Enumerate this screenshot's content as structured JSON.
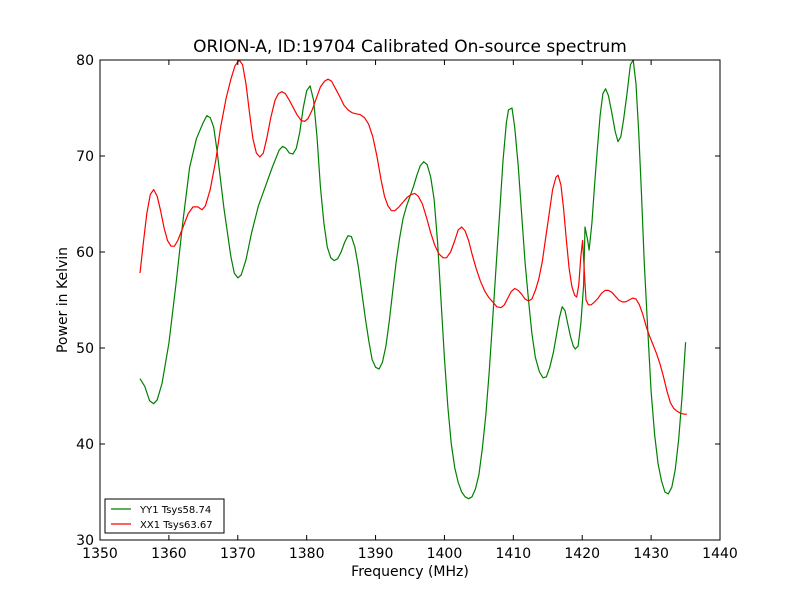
{
  "chart_data": {
    "type": "line",
    "title": "ORION-A, ID:19704 Calibrated On-source spectrum",
    "xlabel": "Frequency (MHz)",
    "ylabel": "Power in Kelvin",
    "xlim": [
      1350,
      1440
    ],
    "ylim": [
      30,
      80
    ],
    "xticks": [
      1350,
      1360,
      1370,
      1380,
      1390,
      1400,
      1410,
      1420,
      1430,
      1440
    ],
    "yticks": [
      30,
      40,
      50,
      60,
      70,
      80
    ],
    "grid": false,
    "legend_position": "lower-left",
    "series": [
      {
        "name": "YY1 Tsys58.74",
        "color": "#008000",
        "points": [
          [
            1355.8,
            46.8
          ],
          [
            1356.5,
            46.0
          ],
          [
            1357.2,
            44.5
          ],
          [
            1357.8,
            44.2
          ],
          [
            1358.3,
            44.6
          ],
          [
            1359.0,
            46.3
          ],
          [
            1360.0,
            50.5
          ],
          [
            1361.0,
            56.5
          ],
          [
            1362.0,
            63.0
          ],
          [
            1363.0,
            68.8
          ],
          [
            1364.0,
            71.8
          ],
          [
            1365.0,
            73.5
          ],
          [
            1365.5,
            74.2
          ],
          [
            1366.0,
            74.0
          ],
          [
            1366.5,
            73.0
          ],
          [
            1367.0,
            70.5
          ],
          [
            1368.0,
            64.5
          ],
          [
            1369.0,
            59.5
          ],
          [
            1369.5,
            57.8
          ],
          [
            1370.0,
            57.3
          ],
          [
            1370.5,
            57.6
          ],
          [
            1371.2,
            59.2
          ],
          [
            1372.0,
            62.0
          ],
          [
            1373.0,
            64.8
          ],
          [
            1374.0,
            66.8
          ],
          [
            1375.0,
            68.8
          ],
          [
            1376.0,
            70.6
          ],
          [
            1376.5,
            71.0
          ],
          [
            1377.0,
            70.8
          ],
          [
            1377.5,
            70.3
          ],
          [
            1378.0,
            70.2
          ],
          [
            1378.5,
            70.8
          ],
          [
            1379.0,
            72.5
          ],
          [
            1379.5,
            75.0
          ],
          [
            1380.0,
            76.8
          ],
          [
            1380.5,
            77.3
          ],
          [
            1381.0,
            75.8
          ],
          [
            1381.5,
            72.0
          ],
          [
            1382.0,
            66.8
          ],
          [
            1382.5,
            63.0
          ],
          [
            1383.0,
            60.5
          ],
          [
            1383.5,
            59.4
          ],
          [
            1384.0,
            59.1
          ],
          [
            1384.5,
            59.3
          ],
          [
            1385.0,
            60.0
          ],
          [
            1385.5,
            61.0
          ],
          [
            1386.0,
            61.7
          ],
          [
            1386.5,
            61.6
          ],
          [
            1387.0,
            60.5
          ],
          [
            1387.5,
            58.5
          ],
          [
            1388.0,
            55.8
          ],
          [
            1388.5,
            53.2
          ],
          [
            1389.0,
            50.8
          ],
          [
            1389.5,
            48.8
          ],
          [
            1390.0,
            48.0
          ],
          [
            1390.5,
            47.8
          ],
          [
            1391.0,
            48.5
          ],
          [
            1391.5,
            50.2
          ],
          [
            1392.0,
            52.8
          ],
          [
            1392.5,
            56.0
          ],
          [
            1393.0,
            59.0
          ],
          [
            1393.5,
            61.5
          ],
          [
            1394.0,
            63.5
          ],
          [
            1394.5,
            64.8
          ],
          [
            1395.0,
            65.8
          ],
          [
            1395.5,
            66.8
          ],
          [
            1396.0,
            68.0
          ],
          [
            1396.5,
            69.0
          ],
          [
            1397.0,
            69.4
          ],
          [
            1397.5,
            69.1
          ],
          [
            1398.0,
            67.8
          ],
          [
            1398.5,
            65.5
          ],
          [
            1399.0,
            61.0
          ],
          [
            1399.5,
            55.0
          ],
          [
            1400.0,
            49.0
          ],
          [
            1400.5,
            43.8
          ],
          [
            1401.0,
            40.0
          ],
          [
            1401.5,
            37.5
          ],
          [
            1402.0,
            36.0
          ],
          [
            1402.5,
            35.0
          ],
          [
            1403.0,
            34.5
          ],
          [
            1403.5,
            34.3
          ],
          [
            1404.0,
            34.5
          ],
          [
            1404.5,
            35.3
          ],
          [
            1405.0,
            36.8
          ],
          [
            1405.5,
            39.5
          ],
          [
            1406.0,
            43.0
          ],
          [
            1406.5,
            47.5
          ],
          [
            1407.0,
            53.0
          ],
          [
            1407.5,
            58.5
          ],
          [
            1408.0,
            64.0
          ],
          [
            1408.5,
            69.5
          ],
          [
            1409.0,
            73.5
          ],
          [
            1409.3,
            74.8
          ],
          [
            1409.8,
            75.0
          ],
          [
            1410.2,
            73.0
          ],
          [
            1410.7,
            69.0
          ],
          [
            1411.2,
            64.0
          ],
          [
            1411.7,
            59.0
          ],
          [
            1412.2,
            55.0
          ],
          [
            1412.7,
            51.5
          ],
          [
            1413.2,
            49.0
          ],
          [
            1413.8,
            47.5
          ],
          [
            1414.3,
            46.9
          ],
          [
            1414.8,
            47.0
          ],
          [
            1415.3,
            48.0
          ],
          [
            1415.8,
            49.5
          ],
          [
            1416.3,
            51.5
          ],
          [
            1416.7,
            53.2
          ],
          [
            1417.1,
            54.3
          ],
          [
            1417.5,
            53.9
          ],
          [
            1417.9,
            52.5
          ],
          [
            1418.3,
            51.2
          ],
          [
            1418.7,
            50.2
          ],
          [
            1419.0,
            49.9
          ],
          [
            1419.4,
            50.2
          ],
          [
            1419.8,
            52.5
          ],
          [
            1420.2,
            56.5
          ],
          [
            1420.4,
            62.6
          ],
          [
            1420.8,
            61.2
          ],
          [
            1421.0,
            60.2
          ],
          [
            1421.4,
            63.0
          ],
          [
            1421.8,
            67.0
          ],
          [
            1422.2,
            70.8
          ],
          [
            1422.6,
            74.2
          ],
          [
            1423.0,
            76.5
          ],
          [
            1423.4,
            77.0
          ],
          [
            1423.8,
            76.3
          ],
          [
            1424.3,
            74.5
          ],
          [
            1424.8,
            72.5
          ],
          [
            1425.2,
            71.5
          ],
          [
            1425.6,
            72.0
          ],
          [
            1426.0,
            73.8
          ],
          [
            1426.5,
            76.5
          ],
          [
            1427.0,
            79.5
          ],
          [
            1427.4,
            80.0
          ],
          [
            1427.8,
            77.5
          ],
          [
            1428.2,
            72.5
          ],
          [
            1428.6,
            66.0
          ],
          [
            1429.0,
            59.0
          ],
          [
            1429.5,
            52.0
          ],
          [
            1430.0,
            45.5
          ],
          [
            1430.5,
            41.0
          ],
          [
            1431.0,
            38.0
          ],
          [
            1431.5,
            36.2
          ],
          [
            1432.0,
            35.0
          ],
          [
            1432.5,
            34.8
          ],
          [
            1433.0,
            35.5
          ],
          [
            1433.5,
            37.3
          ],
          [
            1434.0,
            40.5
          ],
          [
            1434.5,
            45.0
          ],
          [
            1435.0,
            50.6
          ]
        ]
      },
      {
        "name": "XX1 Tsys63.67",
        "color": "#ff0000",
        "points": [
          [
            1355.8,
            57.8
          ],
          [
            1356.3,
            61.0
          ],
          [
            1356.8,
            64.0
          ],
          [
            1357.3,
            66.0
          ],
          [
            1357.8,
            66.5
          ],
          [
            1358.3,
            65.8
          ],
          [
            1358.8,
            64.3
          ],
          [
            1359.3,
            62.5
          ],
          [
            1359.8,
            61.2
          ],
          [
            1360.3,
            60.6
          ],
          [
            1360.8,
            60.6
          ],
          [
            1361.3,
            61.2
          ],
          [
            1362.0,
            62.5
          ],
          [
            1362.8,
            64.0
          ],
          [
            1363.5,
            64.7
          ],
          [
            1364.2,
            64.7
          ],
          [
            1364.8,
            64.4
          ],
          [
            1365.3,
            64.8
          ],
          [
            1366.0,
            66.5
          ],
          [
            1366.8,
            69.5
          ],
          [
            1367.5,
            73.0
          ],
          [
            1368.3,
            76.0
          ],
          [
            1369.0,
            78.0
          ],
          [
            1369.6,
            79.4
          ],
          [
            1370.2,
            80.0
          ],
          [
            1370.7,
            79.5
          ],
          [
            1371.2,
            77.5
          ],
          [
            1371.7,
            74.5
          ],
          [
            1372.2,
            71.8
          ],
          [
            1372.7,
            70.3
          ],
          [
            1373.2,
            69.9
          ],
          [
            1373.7,
            70.3
          ],
          [
            1374.2,
            71.8
          ],
          [
            1374.8,
            74.0
          ],
          [
            1375.4,
            75.8
          ],
          [
            1375.9,
            76.5
          ],
          [
            1376.4,
            76.7
          ],
          [
            1376.9,
            76.5
          ],
          [
            1377.5,
            75.8
          ],
          [
            1378.0,
            75.1
          ],
          [
            1378.6,
            74.3
          ],
          [
            1379.2,
            73.7
          ],
          [
            1379.7,
            73.6
          ],
          [
            1380.2,
            73.9
          ],
          [
            1380.8,
            74.8
          ],
          [
            1381.4,
            76.0
          ],
          [
            1382.0,
            77.2
          ],
          [
            1382.6,
            77.8
          ],
          [
            1383.1,
            78.0
          ],
          [
            1383.6,
            77.8
          ],
          [
            1384.2,
            77.0
          ],
          [
            1384.8,
            76.2
          ],
          [
            1385.4,
            75.3
          ],
          [
            1386.0,
            74.8
          ],
          [
            1386.6,
            74.5
          ],
          [
            1387.2,
            74.4
          ],
          [
            1387.8,
            74.3
          ],
          [
            1388.4,
            74.0
          ],
          [
            1389.0,
            73.3
          ],
          [
            1389.6,
            72.0
          ],
          [
            1390.2,
            70.0
          ],
          [
            1390.8,
            67.5
          ],
          [
            1391.3,
            65.8
          ],
          [
            1391.8,
            64.8
          ],
          [
            1392.3,
            64.3
          ],
          [
            1392.8,
            64.3
          ],
          [
            1393.4,
            64.7
          ],
          [
            1394.0,
            65.2
          ],
          [
            1394.6,
            65.7
          ],
          [
            1395.2,
            66.0
          ],
          [
            1395.7,
            66.1
          ],
          [
            1396.2,
            65.8
          ],
          [
            1396.8,
            65.0
          ],
          [
            1397.4,
            63.6
          ],
          [
            1398.0,
            62.0
          ],
          [
            1398.6,
            60.7
          ],
          [
            1399.2,
            59.8
          ],
          [
            1399.8,
            59.4
          ],
          [
            1400.3,
            59.4
          ],
          [
            1400.9,
            60.0
          ],
          [
            1401.5,
            61.2
          ],
          [
            1402.0,
            62.3
          ],
          [
            1402.5,
            62.6
          ],
          [
            1403.0,
            62.2
          ],
          [
            1403.5,
            61.2
          ],
          [
            1404.0,
            59.8
          ],
          [
            1404.6,
            58.3
          ],
          [
            1405.2,
            57.0
          ],
          [
            1405.8,
            56.0
          ],
          [
            1406.4,
            55.3
          ],
          [
            1407.0,
            54.8
          ],
          [
            1407.6,
            54.3
          ],
          [
            1408.2,
            54.2
          ],
          [
            1408.7,
            54.5
          ],
          [
            1409.2,
            55.2
          ],
          [
            1409.7,
            55.9
          ],
          [
            1410.2,
            56.2
          ],
          [
            1410.7,
            56.0
          ],
          [
            1411.2,
            55.6
          ],
          [
            1411.7,
            55.1
          ],
          [
            1412.2,
            54.9
          ],
          [
            1412.7,
            55.1
          ],
          [
            1413.2,
            56.0
          ],
          [
            1413.7,
            57.2
          ],
          [
            1414.2,
            59.0
          ],
          [
            1414.7,
            61.5
          ],
          [
            1415.2,
            64.0
          ],
          [
            1415.7,
            66.5
          ],
          [
            1416.2,
            67.8
          ],
          [
            1416.5,
            68.0
          ],
          [
            1416.9,
            67.0
          ],
          [
            1417.3,
            64.5
          ],
          [
            1417.7,
            61.2
          ],
          [
            1418.1,
            58.3
          ],
          [
            1418.5,
            56.4
          ],
          [
            1418.9,
            55.5
          ],
          [
            1419.2,
            55.3
          ],
          [
            1419.5,
            56.6
          ],
          [
            1419.8,
            59.5
          ],
          [
            1420.05,
            61.2
          ],
          [
            1420.3,
            58.0
          ],
          [
            1420.55,
            55.0
          ],
          [
            1420.9,
            54.5
          ],
          [
            1421.3,
            54.5
          ],
          [
            1421.8,
            54.8
          ],
          [
            1422.3,
            55.2
          ],
          [
            1422.8,
            55.7
          ],
          [
            1423.3,
            56.0
          ],
          [
            1423.8,
            56.0
          ],
          [
            1424.3,
            55.8
          ],
          [
            1424.8,
            55.4
          ],
          [
            1425.3,
            55.0
          ],
          [
            1425.8,
            54.8
          ],
          [
            1426.3,
            54.8
          ],
          [
            1426.8,
            55.0
          ],
          [
            1427.3,
            55.2
          ],
          [
            1427.8,
            55.1
          ],
          [
            1428.3,
            54.5
          ],
          [
            1428.8,
            53.5
          ],
          [
            1429.3,
            52.2
          ],
          [
            1429.8,
            51.2
          ],
          [
            1430.3,
            50.3
          ],
          [
            1430.8,
            49.4
          ],
          [
            1431.3,
            48.3
          ],
          [
            1431.8,
            47.0
          ],
          [
            1432.3,
            45.5
          ],
          [
            1432.8,
            44.3
          ],
          [
            1433.3,
            43.7
          ],
          [
            1433.8,
            43.4
          ],
          [
            1434.3,
            43.2
          ],
          [
            1434.8,
            43.1
          ],
          [
            1435.2,
            43.1
          ]
        ]
      }
    ]
  }
}
